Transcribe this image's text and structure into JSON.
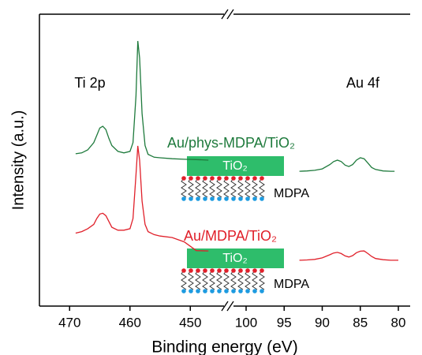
{
  "chart_data": {
    "type": "line",
    "xlabel": "Binding energy (eV)",
    "ylabel": "Intensity (a.u.)",
    "ylim": [
      0,
      100
    ],
    "x_segments": [
      {
        "xlim": [
          475,
          443.5
        ],
        "xticks": [
          470,
          460,
          450
        ]
      },
      {
        "xlim": [
          102,
          78.5
        ],
        "xticks": [
          100,
          95,
          90,
          85,
          80
        ]
      }
    ],
    "series": [
      {
        "color": "#1e7a3c",
        "segment": 0,
        "x": [
          469,
          468,
          467,
          466,
          465.5,
          465,
          464.5,
          464,
          463.5,
          463,
          462,
          461,
          460,
          459.5,
          459,
          458.7,
          458.4,
          458,
          457.5,
          457,
          456,
          455,
          453,
          451,
          449,
          447
        ],
        "values": [
          52.2,
          52.5,
          53.5,
          56,
          58.5,
          61,
          61.6,
          60.5,
          57.5,
          55,
          53,
          52.5,
          53,
          56,
          72,
          90.8,
          85,
          66,
          55,
          52,
          51,
          50.8,
          50.5,
          50.3,
          50.2,
          50
        ]
      },
      {
        "color": "#e0202a",
        "segment": 0,
        "x": [
          469,
          468,
          467,
          466,
          465.5,
          465,
          464.5,
          464,
          463.5,
          463,
          462,
          461,
          460,
          459.5,
          459,
          458.7,
          458.4,
          458,
          457.5,
          457,
          456,
          455,
          453,
          451,
          449,
          447
        ],
        "values": [
          25,
          25.5,
          26.5,
          28,
          30,
          31.5,
          31.8,
          31,
          29,
          27,
          26,
          26,
          26.5,
          30,
          45,
          54.9,
          50,
          36,
          28,
          25.5,
          24.5,
          24,
          23.5,
          22,
          19,
          18.9
        ]
      },
      {
        "color": "#1e7a3c",
        "segment": 1,
        "x": [
          93,
          92,
          91,
          90,
          89,
          88.5,
          88,
          87.5,
          87,
          86.5,
          86,
          85.5,
          85,
          84.5,
          84,
          83.5,
          83,
          82,
          81,
          80.5
        ],
        "values": [
          46.2,
          46.3,
          46.5,
          47,
          48.5,
          49.5,
          50,
          49.5,
          48.3,
          47.8,
          48.5,
          50,
          50.8,
          50.5,
          49,
          47.5,
          46.8,
          46.3,
          46.2,
          46.2
        ]
      },
      {
        "color": "#e0202a",
        "segment": 1,
        "x": [
          93,
          92,
          91,
          90,
          89,
          88.5,
          88,
          87.5,
          87,
          86.5,
          86,
          85.5,
          85,
          84.5,
          84,
          83.5,
          83,
          82,
          81,
          80
        ],
        "values": [
          15.7,
          15.8,
          16,
          16.5,
          17.6,
          18.2,
          18.4,
          18,
          17.2,
          16.8,
          17.3,
          18.3,
          18.8,
          18.9,
          18,
          17,
          16.3,
          15.9,
          15.7,
          15.7
        ]
      }
    ],
    "annotations": [
      {
        "text": "Ti 2p"
      },
      {
        "text": "Au 4f"
      },
      {
        "text": "Au/phys-MDPA/TiO₂",
        "color": "#1e7a3c"
      },
      {
        "text": "Au/MDPA/TiO₂",
        "color": "#e0202a"
      },
      {
        "text": "TiO₂"
      },
      {
        "text": "MDPA"
      },
      {
        "text": "TiO₂"
      },
      {
        "text": "MDPA"
      }
    ]
  }
}
